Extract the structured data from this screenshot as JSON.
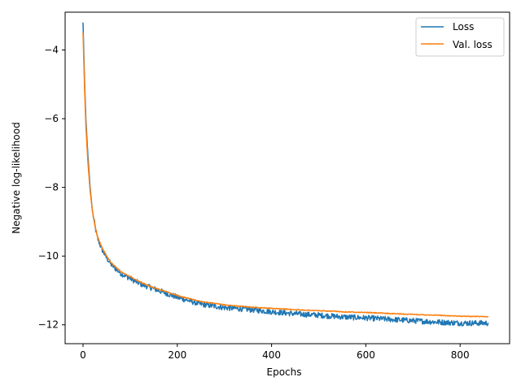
{
  "chart_data": {
    "type": "line",
    "title": "",
    "xlabel": "Epochs",
    "ylabel": "Negative log-likelihood",
    "xlim": [
      -38,
      905
    ],
    "ylim": [
      -12.55,
      -2.9
    ],
    "xticks": [
      0,
      200,
      400,
      600,
      800
    ],
    "yticks": [
      -12,
      -10,
      -8,
      -6,
      -4
    ],
    "grid": false,
    "legend": "top-right",
    "series": [
      {
        "name": "Loss",
        "color": "#1f77b4",
        "noise": 0.05,
        "x": [
          0,
          3,
          6,
          10,
          15,
          20,
          25,
          30,
          40,
          50,
          60,
          80,
          100,
          120,
          150,
          180,
          200,
          250,
          300,
          350,
          400,
          450,
          500,
          550,
          600,
          650,
          700,
          750,
          800,
          860
        ],
        "y": [
          -3.2,
          -4.8,
          -6.0,
          -7.0,
          -8.0,
          -8.7,
          -9.1,
          -9.45,
          -9.8,
          -10.05,
          -10.25,
          -10.5,
          -10.65,
          -10.8,
          -10.95,
          -11.1,
          -11.2,
          -11.4,
          -11.5,
          -11.55,
          -11.62,
          -11.68,
          -11.72,
          -11.77,
          -11.8,
          -11.84,
          -11.88,
          -11.92,
          -11.95,
          -11.95
        ]
      },
      {
        "name": "Val. loss",
        "color": "#ff7f0e",
        "noise": 0.012,
        "x": [
          0,
          3,
          6,
          10,
          15,
          20,
          25,
          30,
          40,
          50,
          60,
          80,
          100,
          120,
          150,
          180,
          200,
          250,
          300,
          350,
          400,
          450,
          500,
          550,
          600,
          650,
          700,
          750,
          800,
          860
        ],
        "y": [
          -3.5,
          -5.0,
          -6.2,
          -7.2,
          -8.1,
          -8.7,
          -9.1,
          -9.4,
          -9.75,
          -10.0,
          -10.2,
          -10.45,
          -10.6,
          -10.75,
          -10.92,
          -11.05,
          -11.15,
          -11.32,
          -11.42,
          -11.48,
          -11.52,
          -11.56,
          -11.59,
          -11.62,
          -11.64,
          -11.67,
          -11.7,
          -11.72,
          -11.75,
          -11.76
        ]
      }
    ]
  }
}
